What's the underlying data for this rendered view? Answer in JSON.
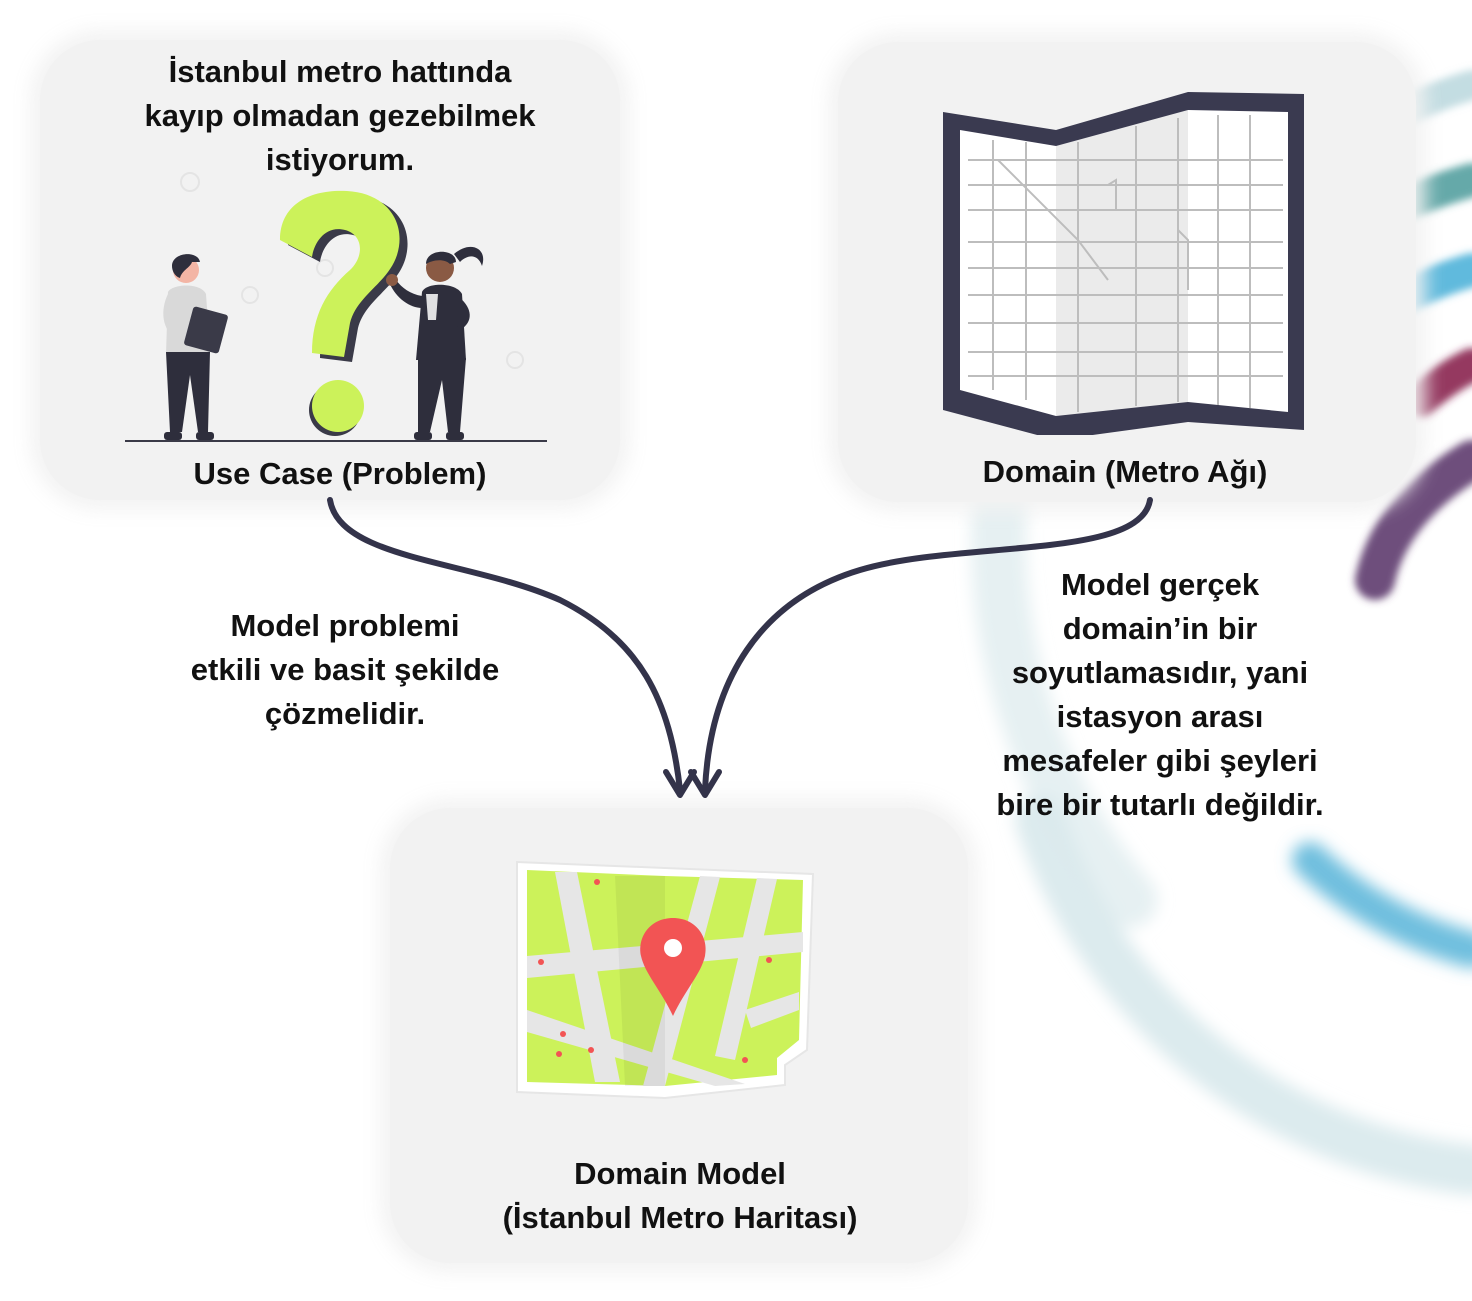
{
  "use_case": {
    "question_lines": [
      "İstanbul metro hattında",
      "kayıp olmadan gezebilmek",
      "istiyorum."
    ],
    "label": "Use Case (Problem)"
  },
  "domain": {
    "label": "Domain (Metro Ağı)"
  },
  "domain_model": {
    "label_lines": [
      "Domain Model",
      "(İstanbul Metro Haritası)"
    ]
  },
  "notes": {
    "left_lines": [
      "Model problemi",
      "etkili ve basit şekilde",
      "çözmelidir."
    ],
    "right_lines": [
      "Model gerçek",
      "domain’in bir",
      "soyutlamasıdır, yani",
      "istasyon arası",
      "mesafeler gibi şeyleri",
      "bire bir tutarlı değildir."
    ]
  },
  "icons": [
    "people-question-illustration",
    "paper-map-icon",
    "location-map-icon",
    "arrow-down-icon"
  ],
  "colors": {
    "card_bg": "#f2f2f2",
    "accent_green": "#ccf25a",
    "pin_red": "#f25454",
    "arrow": "#33334a",
    "arc_blue": "#4fb3d9",
    "arc_teal": "#4a9a9a",
    "arc_maroon": "#8a2350",
    "arc_purple": "#5e3a6e"
  }
}
